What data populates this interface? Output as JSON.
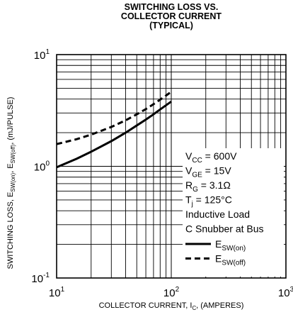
{
  "chart_data": {
    "type": "line",
    "title_lines": [
      "SWITCHING LOSS VS.",
      "COLLECTOR CURRENT",
      "(TYPICAL)"
    ],
    "xlabel": {
      "pre": "COLLECTOR CURRENT, I",
      "sub": "C",
      "post": ", (AMPERES)"
    },
    "ylabel": {
      "p1": "SWITCHING LOSS, E",
      "s1": "SW(on)",
      "p2": ", E",
      "s2": "SW(off)",
      "p3": ", (mJ/PULSE)"
    },
    "x_scale": "log",
    "y_scale": "log",
    "xlim": [
      10,
      1000
    ],
    "ylim": [
      0.1,
      10
    ],
    "grid": true,
    "x_ticks": [
      {
        "value": 10,
        "base": "10",
        "exp": "1"
      },
      {
        "value": 100,
        "base": "10",
        "exp": "2"
      },
      {
        "value": 1000,
        "base": "10",
        "exp": "3"
      }
    ],
    "y_ticks": [
      {
        "value": 0.1,
        "base": "10",
        "exp": "-1"
      },
      {
        "value": 1,
        "base": "10",
        "exp": "0"
      },
      {
        "value": 10,
        "base": "10",
        "exp": "1"
      }
    ],
    "conditions": [
      {
        "pre": "V",
        "sub": "CC",
        "post": " = 600V"
      },
      {
        "pre": "V",
        "sub": "GE",
        "post": " = 15V"
      },
      {
        "pre": "R",
        "sub": "G",
        "post": " = 3.1Ω"
      },
      {
        "pre": "T",
        "sub": "j",
        "post": " = 125°C"
      },
      {
        "pre": "Inductive Load",
        "sub": "",
        "post": ""
      },
      {
        "pre": "C Snubber at Bus",
        "sub": "",
        "post": ""
      }
    ],
    "series": [
      {
        "label_pre": "E",
        "label_sub": "SW(on)",
        "style": "solid",
        "x": [
          10,
          15,
          20,
          30,
          40,
          50,
          60,
          70,
          80,
          90,
          100
        ],
        "y": [
          0.98,
          1.17,
          1.35,
          1.68,
          2.0,
          2.32,
          2.62,
          2.92,
          3.23,
          3.52,
          3.8
        ]
      },
      {
        "label_pre": "E",
        "label_sub": "SW(off)",
        "style": "dashed",
        "x": [
          10,
          15,
          20,
          30,
          40,
          50,
          60,
          70,
          80,
          90,
          100
        ],
        "y": [
          1.58,
          1.75,
          1.92,
          2.25,
          2.58,
          2.92,
          3.25,
          3.6,
          3.95,
          4.3,
          4.65
        ]
      }
    ]
  }
}
